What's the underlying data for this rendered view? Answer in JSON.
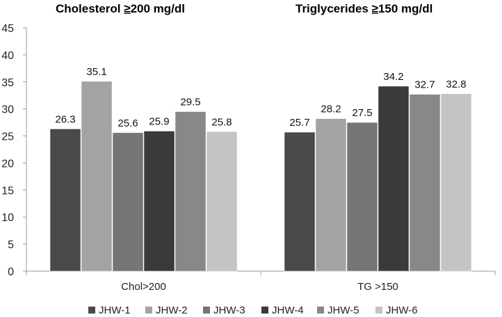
{
  "chart_data": {
    "type": "bar",
    "titles": [
      {
        "symbol": "≥",
        "prefix": "Cholesterol ",
        "suffix": "200 mg/dl"
      },
      {
        "symbol": "≥",
        "prefix": "Triglycerides ",
        "suffix": "150 mg/dl"
      }
    ],
    "categories": [
      "Chol>200",
      "TG >150"
    ],
    "series": [
      {
        "name": "JHW-1",
        "color": "#4a4a4a",
        "values": [
          26.3,
          25.7
        ]
      },
      {
        "name": "JHW-2",
        "color": "#a3a3a3",
        "values": [
          35.1,
          28.2
        ]
      },
      {
        "name": "JHW-3",
        "color": "#757575",
        "values": [
          25.6,
          27.5
        ]
      },
      {
        "name": "JHW-4",
        "color": "#3a3a3a",
        "values": [
          25.9,
          34.2
        ]
      },
      {
        "name": "JHW-5",
        "color": "#888888",
        "values": [
          29.5,
          32.7
        ]
      },
      {
        "name": "JHW-6",
        "color": "#c4c4c4",
        "values": [
          25.8,
          32.8
        ]
      }
    ],
    "ylim": [
      0,
      45
    ],
    "yticks": [
      0,
      5,
      10,
      15,
      20,
      25,
      30,
      35,
      40,
      45
    ],
    "xlabel": "",
    "ylabel": "",
    "grid": false,
    "legend_position": "bottom"
  }
}
